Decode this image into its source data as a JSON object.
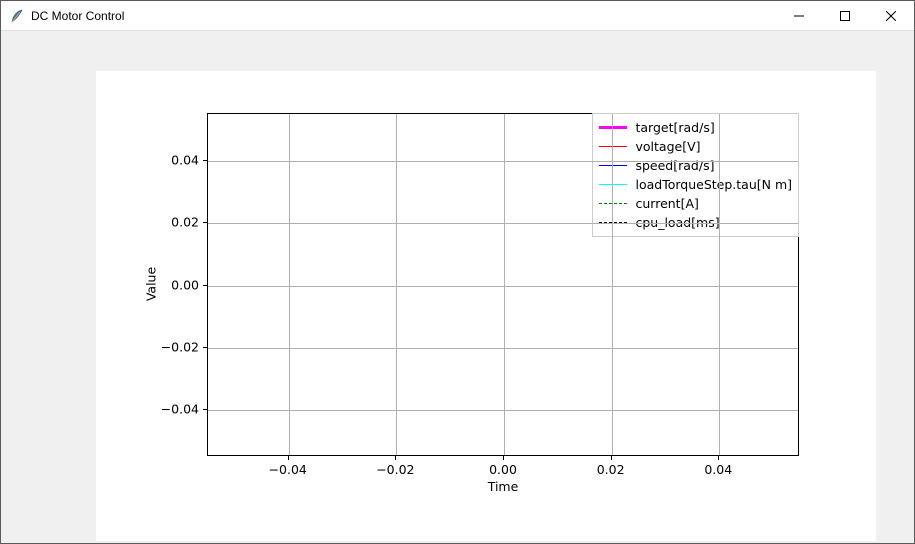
{
  "window": {
    "title": "DC Motor Control"
  },
  "chart": {
    "type": "line",
    "xlabel": "Time",
    "ylabel": "Value",
    "label_fontsize": 12.5,
    "tick_fontsize": 12.5,
    "xlim": [
      -0.055,
      0.055
    ],
    "ylim": [
      -0.055,
      0.055
    ],
    "xticks": [
      -0.04,
      -0.02,
      0.0,
      0.02,
      0.04
    ],
    "xtick_labels": [
      "−0.04",
      "−0.02",
      "0.00",
      "0.02",
      "0.04"
    ],
    "yticks": [
      -0.04,
      -0.02,
      0.0,
      0.02,
      0.04
    ],
    "ytick_labels": [
      "−0.04",
      "−0.02",
      "0.00",
      "0.02",
      "0.04"
    ],
    "background_color": "#ffffff",
    "figure_facecolor": "#ffffff",
    "outer_background": "#f0f0f0",
    "grid_color": "#b0b0b0",
    "axes_edge_color": "#000000",
    "legend": {
      "position": "upper-right",
      "edge_color": "#cccccc",
      "face_color": "#ffffff",
      "items": [
        {
          "label": "target[rad/s]",
          "color": "#ff00ff",
          "style": "solid",
          "width": 3
        },
        {
          "label": "voltage[V]",
          "color": "#ff0000",
          "style": "solid",
          "width": 1.5
        },
        {
          "label": "speed[rad/s]",
          "color": "#0000ff",
          "style": "solid",
          "width": 1.5
        },
        {
          "label": "loadTorqueStep.tau[N m]",
          "color": "#00ffff",
          "style": "solid",
          "width": 1.5
        },
        {
          "label": "current[A]",
          "color": "#008000",
          "style": "dashed",
          "width": 1.5
        },
        {
          "label": "cpu_load[ms]",
          "color": "#000000",
          "style": "dashed",
          "width": 1.5
        }
      ]
    },
    "series": []
  }
}
